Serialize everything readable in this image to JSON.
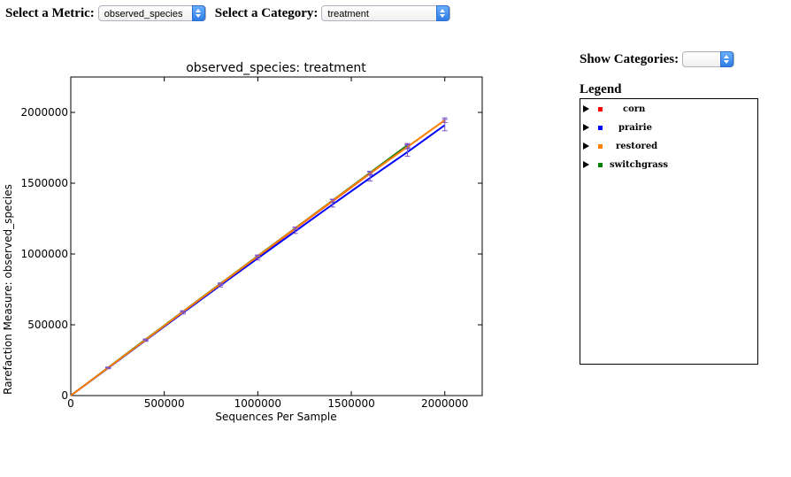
{
  "controls": {
    "metric_label": "Select a Metric:",
    "metric_value": "observed_species",
    "category_label": "Select a Category:",
    "category_value": "treatment",
    "show_categories_label": "Show Categories:",
    "show_categories_value": ""
  },
  "legend": {
    "title": "Legend",
    "items": [
      {
        "name": "corn",
        "color": "#ff0000"
      },
      {
        "name": "prairie",
        "color": "#0000ff"
      },
      {
        "name": "restored",
        "color": "#ff7f00"
      },
      {
        "name": "switchgrass",
        "color": "#008000"
      }
    ]
  },
  "chart_data": {
    "type": "line",
    "title": "observed_species: treatment",
    "xlabel": "Sequences Per Sample",
    "ylabel": "Rarefaction Measure: observed_species",
    "xlim": [
      0,
      2200000
    ],
    "ylim": [
      0,
      2250000
    ],
    "x_ticks": [
      0,
      500000,
      1000000,
      1500000,
      2000000
    ],
    "y_ticks": [
      0,
      500000,
      1000000,
      1500000,
      2000000
    ],
    "grid": false,
    "series": [
      {
        "name": "corn",
        "color": "#ff0000",
        "x": [
          10,
          200000,
          400000,
          600000,
          800000,
          1000000,
          1200000,
          1400000,
          1600000,
          1800000
        ],
        "y": [
          10,
          197000,
          394000,
          592000,
          786000,
          982000,
          1178000,
          1374000,
          1568000,
          1760000
        ],
        "err": [
          0,
          4000,
          5000,
          6000,
          7000,
          8000,
          9000,
          10000,
          12000,
          14000
        ]
      },
      {
        "name": "prairie",
        "color": "#0000ff",
        "x": [
          10,
          200000,
          400000,
          600000,
          800000,
          1000000,
          1200000,
          1400000,
          1600000,
          1800000,
          2000000
        ],
        "y": [
          10,
          195000,
          390000,
          585000,
          778000,
          970000,
          1160000,
          1350000,
          1537000,
          1720000,
          1910000
        ],
        "err": [
          0,
          5000,
          7000,
          9000,
          11000,
          13000,
          15000,
          18000,
          22000,
          30000,
          40000
        ]
      },
      {
        "name": "restored",
        "color": "#ff7f00",
        "x": [
          10,
          200000,
          400000,
          600000,
          800000,
          1000000,
          1200000,
          1400000,
          1600000,
          1800000,
          2000000
        ],
        "y": [
          10,
          197000,
          394000,
          592000,
          788000,
          984000,
          1180000,
          1376000,
          1570000,
          1756000,
          1945000
        ],
        "err": [
          0,
          3000,
          4000,
          5000,
          6000,
          7000,
          8000,
          9000,
          10000,
          13000,
          16000
        ]
      },
      {
        "name": "switchgrass",
        "color": "#008000",
        "x": [
          10,
          200000,
          400000,
          600000,
          800000,
          1000000,
          1200000,
          1400000,
          1600000,
          1800000
        ],
        "y": [
          10,
          198000,
          396000,
          594000,
          790000,
          986000,
          1182000,
          1378000,
          1574000,
          1768000
        ],
        "err": [
          0,
          3000,
          4000,
          5000,
          6000,
          7000,
          8000,
          9000,
          10000,
          12000
        ]
      }
    ]
  }
}
